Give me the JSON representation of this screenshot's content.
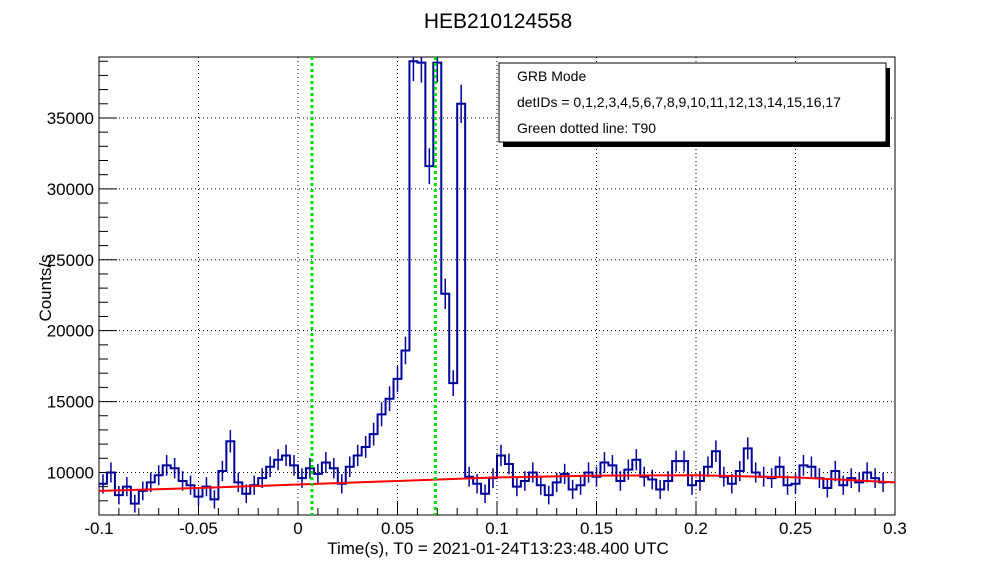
{
  "chart_data": {
    "type": "line",
    "title": "HEB210124558",
    "xlabel": "Time(s), T0 = 2021-01-24T13:23:48.400 UTC",
    "ylabel": "Counts/s",
    "xlim": [
      -0.1,
      0.3
    ],
    "ylim": [
      7000,
      39300
    ],
    "grid": true,
    "x_ticks": [
      "-0.1",
      "-0.05",
      "0",
      "0.05",
      "0.1",
      "0.15",
      "0.2",
      "0.25",
      "0.3"
    ],
    "x_tick_values": [
      -0.1,
      -0.05,
      0,
      0.05,
      0.1,
      0.15,
      0.2,
      0.25,
      0.3
    ],
    "y_ticks": [
      "10000",
      "15000",
      "20000",
      "25000",
      "30000",
      "35000"
    ],
    "y_tick_values": [
      10000,
      15000,
      20000,
      25000,
      30000,
      35000
    ],
    "legend": {
      "placement": "top-right",
      "entries": [
        "GRB Mode",
        "detIDs = 0,1,2,3,4,5,6,7,8,9,10,11,12,13,14,15,16,17",
        "Green dotted line: T90"
      ]
    },
    "t90_lines": [
      0.007,
      0.069
    ],
    "series": [
      {
        "kind": "histogram",
        "color": "#000099",
        "bin_start": -0.1,
        "bin_width": 0.004,
        "values": [
          9200,
          10000,
          8400,
          9000,
          7800,
          8700,
          9300,
          9800,
          10500,
          10300,
          9400,
          9100,
          8300,
          9000,
          8100,
          10100,
          12200,
          9300,
          8500,
          9100,
          9600,
          10400,
          10900,
          11200,
          10500,
          9600,
          10300,
          9900,
          10700,
          10300,
          9200,
          10400,
          11200,
          11800,
          12700,
          14100,
          15200,
          16600,
          18600,
          39000,
          38900,
          31600,
          38900,
          22600,
          16300,
          36000,
          9700,
          9200,
          8500,
          9600,
          11200,
          10600,
          9000,
          9400,
          10000,
          9100,
          8400,
          9300,
          9900,
          8800,
          9100,
          10000,
          9700,
          10700,
          10500,
          9400,
          10200,
          10900,
          9700,
          9500,
          8800,
          9400,
          10800,
          10800,
          9100,
          9400,
          10400,
          11500,
          9700,
          9200,
          10100,
          11700,
          10000,
          9700,
          9600,
          10400,
          9100,
          9200,
          10500,
          10400,
          9600,
          8900,
          10100,
          9100,
          9600,
          9300,
          10000,
          9600,
          9300
        ]
      },
      {
        "kind": "background-fit",
        "color": "#ff0000",
        "x": [
          -0.1,
          -0.05,
          0,
          0.05,
          0.1,
          0.15,
          0.2,
          0.25,
          0.3
        ],
        "y": [
          8700,
          8900,
          9150,
          9400,
          9650,
          9780,
          9800,
          9650,
          9300
        ]
      }
    ]
  }
}
